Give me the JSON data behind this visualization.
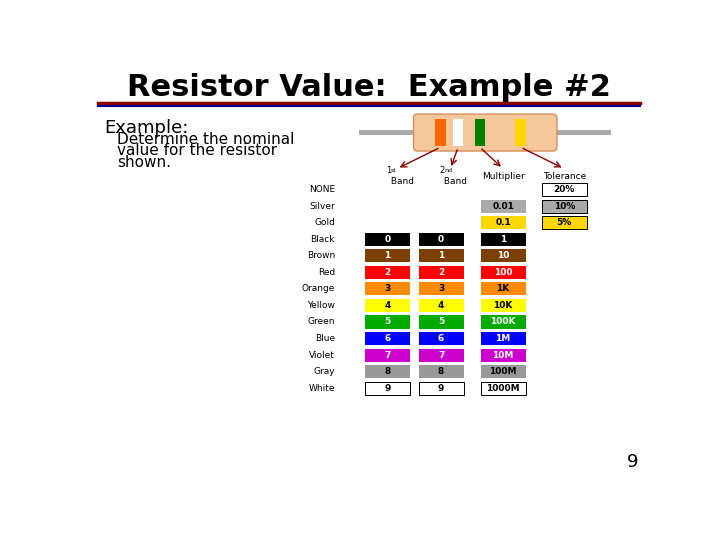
{
  "title": "Resistor Value:  Example #2",
  "title_fontsize": 22,
  "title_color": "#000000",
  "bg_color": "#ffffff",
  "example_text": "Example:",
  "example_line1": "Determine the nominal",
  "example_line2": "value for the resistor",
  "example_line3": "shown.",
  "page_number": "9",
  "sep_color_top": "#8B0000",
  "sep_color_bot": "#00008B",
  "rows": [
    {
      "label": "NONE",
      "band1": null,
      "band2": null,
      "mult": null,
      "tol": "20%",
      "b1c": null,
      "b2c": null,
      "mc": null,
      "tc": "#ffffff",
      "mt_col": "#000000",
      "tt_col": "#000000"
    },
    {
      "label": "Silver",
      "band1": null,
      "band2": null,
      "mult": "0.01",
      "tol": "10%",
      "b1c": null,
      "b2c": null,
      "mc": "#aaaaaa",
      "tc": "#aaaaaa",
      "mt_col": "#000000",
      "tt_col": "#000000"
    },
    {
      "label": "Gold",
      "band1": null,
      "band2": null,
      "mult": "0.1",
      "tol": "5%",
      "b1c": null,
      "b2c": null,
      "mc": "#FFD700",
      "tc": "#FFD700",
      "mt_col": "#000000",
      "tt_col": "#000000"
    },
    {
      "label": "Black",
      "band1": "0",
      "band2": "0",
      "mult": "1",
      "tol": null,
      "b1c": "#000000",
      "b2c": "#000000",
      "mc": "#000000",
      "tc": null,
      "mt_col": "#ffffff",
      "tt_col": "#ffffff"
    },
    {
      "label": "Brown",
      "band1": "1",
      "band2": "1",
      "mult": "10",
      "tol": null,
      "b1c": "#7B3F00",
      "b2c": "#7B3F00",
      "mc": "#7B3F00",
      "tc": null,
      "mt_col": "#ffffff",
      "tt_col": "#ffffff"
    },
    {
      "label": "Red",
      "band1": "2",
      "band2": "2",
      "mult": "100",
      "tol": null,
      "b1c": "#FF0000",
      "b2c": "#FF0000",
      "mc": "#FF0000",
      "tc": null,
      "mt_col": "#ffffff",
      "tt_col": "#ffffff"
    },
    {
      "label": "Orange",
      "band1": "3",
      "band2": "3",
      "mult": "1K",
      "tol": null,
      "b1c": "#FF8C00",
      "b2c": "#FF8C00",
      "mc": "#FF8C00",
      "tc": null,
      "mt_col": "#000000",
      "tt_col": "#000000"
    },
    {
      "label": "Yellow",
      "band1": "4",
      "band2": "4",
      "mult": "10K",
      "tol": null,
      "b1c": "#FFFF00",
      "b2c": "#FFFF00",
      "mc": "#FFFF00",
      "tc": null,
      "mt_col": "#000000",
      "tt_col": "#000000"
    },
    {
      "label": "Green",
      "band1": "5",
      "band2": "5",
      "mult": "100K",
      "tol": null,
      "b1c": "#00AA00",
      "b2c": "#00AA00",
      "mc": "#00AA00",
      "tc": null,
      "mt_col": "#ffffff",
      "tt_col": "#ffffff"
    },
    {
      "label": "Blue",
      "band1": "6",
      "band2": "6",
      "mult": "1M",
      "tol": null,
      "b1c": "#0000FF",
      "b2c": "#0000FF",
      "mc": "#0000FF",
      "tc": null,
      "mt_col": "#ffffff",
      "tt_col": "#ffffff"
    },
    {
      "label": "Violet",
      "band1": "7",
      "band2": "7",
      "mult": "10M",
      "tol": null,
      "b1c": "#CC00CC",
      "b2c": "#CC00CC",
      "mc": "#CC00CC",
      "tc": null,
      "mt_col": "#ffffff",
      "tt_col": "#ffffff"
    },
    {
      "label": "Gray",
      "band1": "8",
      "band2": "8",
      "mult": "100M",
      "tol": null,
      "b1c": "#999999",
      "b2c": "#999999",
      "mc": "#999999",
      "tc": null,
      "mt_col": "#000000",
      "tt_col": "#000000"
    },
    {
      "label": "White",
      "band1": "9",
      "band2": "9",
      "mult": "1000M",
      "tol": null,
      "b1c": "#ffffff",
      "b2c": "#ffffff",
      "mc": "#ffffff",
      "tc": null,
      "mt_col": "#000000",
      "tt_col": "#000000"
    }
  ],
  "res_body_color": "#F4C89A",
  "res_body_edge": "#D49060",
  "res_lead_color": "#aaaaaa",
  "res_bands": [
    {
      "color": "#FF6600"
    },
    {
      "color": "#ffffff"
    },
    {
      "color": "#008000"
    },
    {
      "color": "#FFD700"
    }
  ],
  "arrow_color": "#8B0000"
}
